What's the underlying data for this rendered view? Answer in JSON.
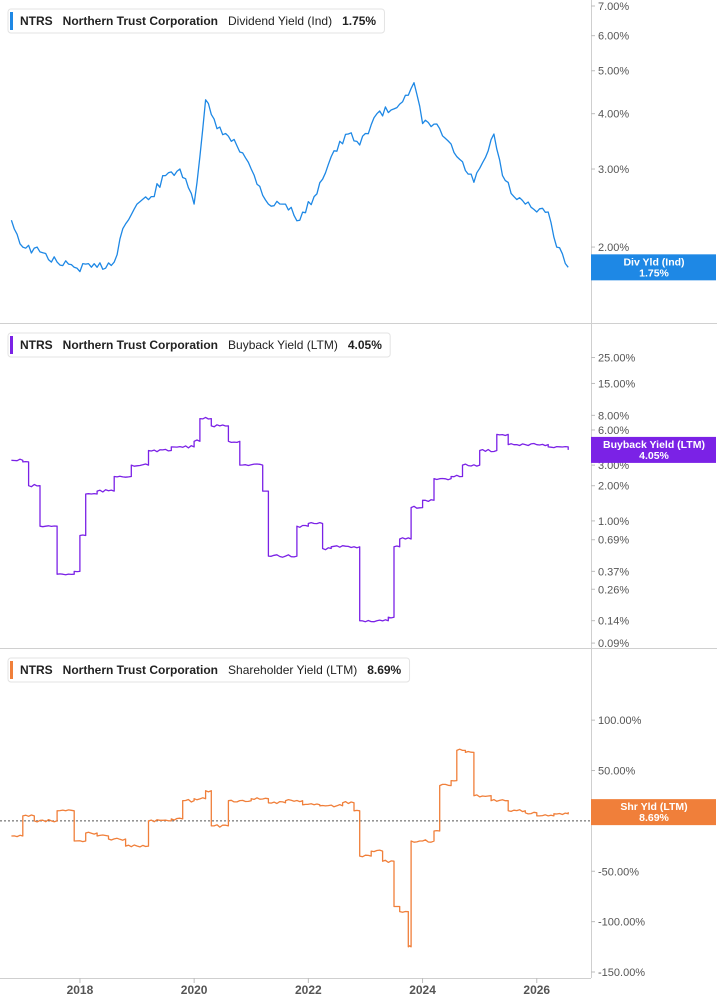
{
  "chart_data": [
    {
      "type": "line",
      "ticker": "NTRS",
      "company": "Northern Trust Corporation",
      "metric": "Dividend Yield (Ind)",
      "current_value": "1.75%",
      "badge_label": "Div Yld (Ind)",
      "badge_value": "1.75%",
      "color": "#1e88e5",
      "scale": "log",
      "y_ticks": [
        "2.00%",
        "3.00%",
        "4.00%",
        "5.00%",
        "6.00%",
        "7.00%"
      ],
      "y_tick_values": [
        2,
        3,
        4,
        5,
        6,
        7
      ],
      "ylim": [
        1.6,
        7.0
      ],
      "zero_line": false,
      "x": [
        2016.8,
        2017.0,
        2017.3,
        2017.6,
        2017.9,
        2018.3,
        2018.6,
        2018.75,
        2019.0,
        2019.25,
        2019.5,
        2019.75,
        2020.0,
        2020.1,
        2020.2,
        2020.4,
        2020.7,
        2021.0,
        2021.3,
        2021.6,
        2021.85,
        2022.1,
        2022.4,
        2022.7,
        2022.9,
        2023.2,
        2023.5,
        2023.7,
        2023.85,
        2024.0,
        2024.3,
        2024.6,
        2024.9,
        2025.15,
        2025.25,
        2025.4,
        2025.6,
        2025.8,
        2026.0,
        2026.2,
        2026.35,
        2026.55
      ],
      "y": [
        2.3,
        2.0,
        1.95,
        1.85,
        1.8,
        1.8,
        1.85,
        2.2,
        2.5,
        2.6,
        2.9,
        3.0,
        2.5,
        3.2,
        4.3,
        3.7,
        3.5,
        3.0,
        2.5,
        2.5,
        2.3,
        2.6,
        3.2,
        3.6,
        3.4,
        4.0,
        4.1,
        4.4,
        4.7,
        3.8,
        3.7,
        3.2,
        2.8,
        3.3,
        3.6,
        2.9,
        2.6,
        2.5,
        2.4,
        2.4,
        2.0,
        1.8
      ]
    },
    {
      "type": "line",
      "ticker": "NTRS",
      "company": "Northern Trust Corporation",
      "metric": "Buyback Yield (LTM)",
      "current_value": "4.05%",
      "badge_label": "Buyback Yield (LTM)",
      "badge_value": "4.05%",
      "color": "#7b22e6",
      "scale": "log",
      "y_ticks": [
        "0.09%",
        "0.14%",
        "0.26%",
        "0.37%",
        "0.69%",
        "1.00%",
        "2.00%",
        "3.00%",
        "6.00%",
        "8.00%",
        "15.00%",
        "25.00%"
      ],
      "y_tick_values": [
        0.09,
        0.14,
        0.26,
        0.37,
        0.69,
        1.0,
        2.0,
        3.0,
        6.0,
        8.0,
        15.0,
        25.0
      ],
      "ylim": [
        0.085,
        32
      ],
      "zero_line": false,
      "x": [
        2016.8,
        2017.0,
        2017.1,
        2017.3,
        2017.4,
        2017.6,
        2017.7,
        2017.9,
        2018.0,
        2018.1,
        2018.3,
        2018.6,
        2018.9,
        2019.2,
        2019.6,
        2020.0,
        2020.1,
        2020.3,
        2020.6,
        2020.8,
        2021.2,
        2021.3,
        2021.6,
        2021.8,
        2022.0,
        2022.25,
        2022.4,
        2022.8,
        2022.9,
        2023.2,
        2023.4,
        2023.5,
        2023.6,
        2023.8,
        2024.0,
        2024.2,
        2024.5,
        2024.7,
        2025.0,
        2025.3,
        2025.5,
        2025.8,
        2026.2,
        2026.55
      ],
      "y": [
        3.3,
        3.2,
        2.0,
        0.9,
        0.9,
        0.35,
        0.35,
        0.37,
        0.75,
        1.7,
        1.8,
        2.4,
        3.0,
        4.0,
        4.3,
        4.8,
        7.5,
        6.5,
        4.8,
        3.0,
        1.8,
        0.5,
        0.5,
        0.9,
        0.95,
        0.58,
        0.6,
        0.6,
        0.14,
        0.14,
        0.15,
        0.6,
        0.7,
        1.3,
        1.5,
        2.3,
        2.4,
        3.0,
        4.0,
        5.5,
        4.5,
        4.5,
        4.3,
        4.05
      ]
    },
    {
      "type": "line",
      "ticker": "NTRS",
      "company": "Northern Trust Corporation",
      "metric": "Shareholder Yield (LTM)",
      "current_value": "8.69%",
      "badge_label": "Shr Yld (LTM)",
      "badge_value": "8.69%",
      "color": "#f07f3a",
      "scale": "linear",
      "y_ticks": [
        "-150.00%",
        "-100.00%",
        "-50.00%",
        "0.00%",
        "50.00%",
        "100.00%"
      ],
      "y_tick_values": [
        -150,
        -100,
        -50,
        0,
        50,
        100
      ],
      "ylim": [
        -150,
        120
      ],
      "zero_line": true,
      "x": [
        2016.8,
        2017.0,
        2017.2,
        2017.5,
        2017.6,
        2017.9,
        2018.1,
        2018.3,
        2018.5,
        2018.8,
        2019.2,
        2019.6,
        2019.8,
        2020.0,
        2020.2,
        2020.3,
        2020.6,
        2021.0,
        2021.3,
        2021.6,
        2021.9,
        2022.2,
        2022.6,
        2022.8,
        2022.9,
        2023.1,
        2023.3,
        2023.5,
        2023.6,
        2023.75,
        2023.8,
        2024.0,
        2024.2,
        2024.3,
        2024.5,
        2024.6,
        2024.75,
        2024.9,
        2025.2,
        2025.5,
        2025.8,
        2026.0,
        2026.3,
        2026.55
      ],
      "y": [
        -15,
        5,
        0,
        0,
        10,
        -20,
        -12,
        -15,
        -18,
        -25,
        0,
        2,
        20,
        22,
        30,
        -5,
        20,
        22,
        18,
        20,
        16,
        15,
        18,
        10,
        -35,
        -30,
        -40,
        -85,
        -90,
        -125,
        -20,
        -20,
        -10,
        35,
        40,
        70,
        68,
        25,
        20,
        10,
        8,
        5,
        7,
        8.69
      ]
    }
  ],
  "x_axis": {
    "ticks": [
      "2018",
      "2020",
      "2022",
      "2024",
      "2026"
    ],
    "tick_values": [
      2018,
      2020,
      2022,
      2024,
      2026
    ],
    "xlim": [
      2016.6,
      2026.95
    ]
  }
}
